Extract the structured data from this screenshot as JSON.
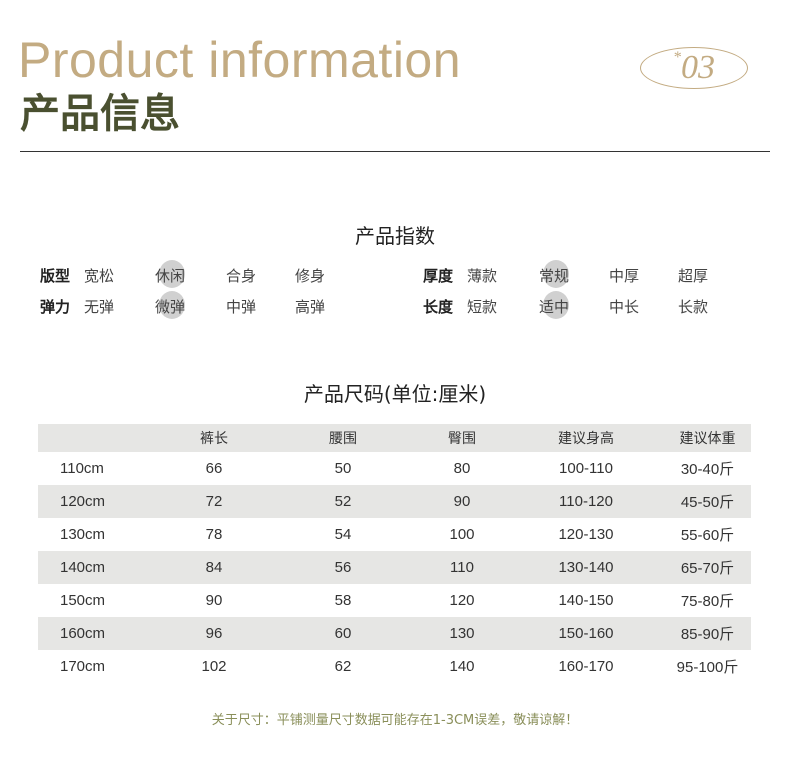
{
  "header": {
    "title_en": "Product information",
    "title_cn": "产品信息",
    "badge_star": "*",
    "badge_number": "03",
    "accent_color": "#c3ab82",
    "title_color": "#4a5030"
  },
  "index": {
    "title": "产品指数",
    "groups": [
      {
        "label": "版型",
        "options": [
          "宽松",
          "休闲",
          "合身",
          "修身"
        ],
        "selected": "休闲"
      },
      {
        "label": "弹力",
        "options": [
          "无弹",
          "微弹",
          "中弹",
          "高弹"
        ],
        "selected": "微弹"
      },
      {
        "label": "厚度",
        "options": [
          "薄款",
          "常规",
          "中厚",
          "超厚"
        ],
        "selected": "常规"
      },
      {
        "label": "长度",
        "options": [
          "短款",
          "适中",
          "中长",
          "长款"
        ],
        "selected": "适中"
      }
    ]
  },
  "size": {
    "title": "产品尺码(单位:厘米)",
    "headers": [
      "",
      "裤长",
      "腰围",
      "臀围",
      "建议身高",
      "建议体重"
    ],
    "rows": [
      [
        "110cm",
        "66",
        "50",
        "80",
        "100-110",
        "30-40斤"
      ],
      [
        "120cm",
        "72",
        "52",
        "90",
        "110-120",
        "45-50斤"
      ],
      [
        "130cm",
        "78",
        "54",
        "100",
        "120-130",
        "55-60斤"
      ],
      [
        "140cm",
        "84",
        "56",
        "110",
        "130-140",
        "65-70斤"
      ],
      [
        "150cm",
        "90",
        "58",
        "120",
        "140-150",
        "75-80斤"
      ],
      [
        "160cm",
        "96",
        "60",
        "130",
        "150-160",
        "85-90斤"
      ],
      [
        "170cm",
        "102",
        "62",
        "140",
        "160-170",
        "95-100斤"
      ]
    ]
  },
  "note": "关于尺寸：平铺测量尺寸数据可能存在1-3CM误差，敬请谅解！"
}
